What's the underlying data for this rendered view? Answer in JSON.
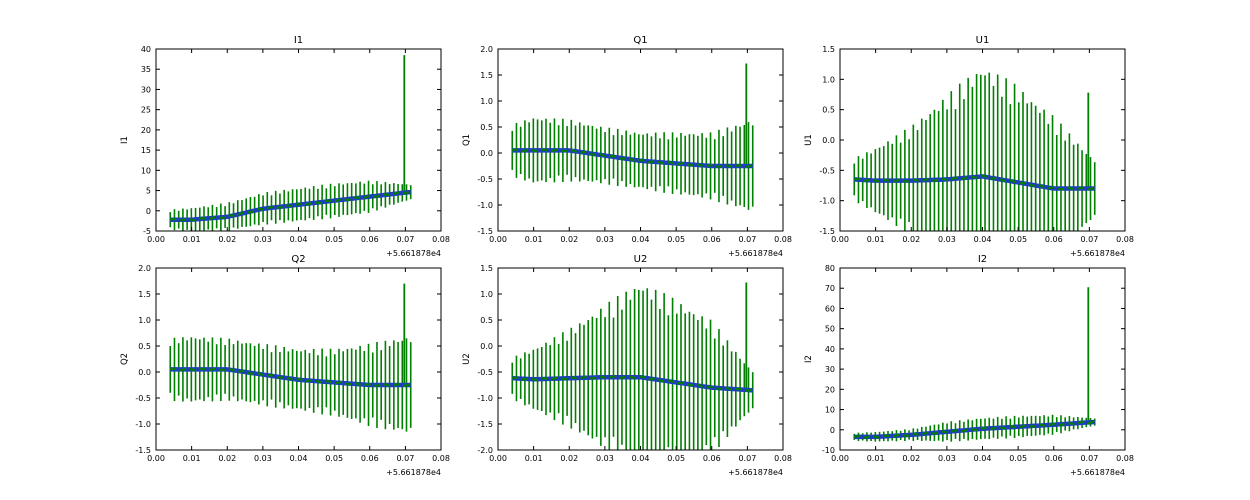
{
  "colors": {
    "blue": "#1f3fbf",
    "green": "#007f00",
    "axes": "#000000"
  },
  "chart_data": [
    {
      "type": "line",
      "title": "I1",
      "ylabel": "I1",
      "xlabel": "",
      "offset_label": "+5.661878e4",
      "xlim": [
        0.0,
        0.08
      ],
      "ylim": [
        -5,
        40
      ],
      "xticks": [
        "0.00",
        "0.01",
        "0.02",
        "0.03",
        "0.04",
        "0.05",
        "0.06",
        "0.07",
        "0.08"
      ],
      "yticks": [
        "-5",
        "0",
        "5",
        "10",
        "15",
        "20",
        "25",
        "30",
        "35",
        "40"
      ],
      "series": [
        {
          "name": "data",
          "color": "blue",
          "x": [
            0.004,
            0.01,
            0.02,
            0.03,
            0.04,
            0.05,
            0.06,
            0.071
          ],
          "y": [
            -2.2,
            -2.2,
            -1.5,
            0.5,
            1.5,
            2.5,
            3.5,
            4.6
          ]
        },
        {
          "name": "errorbars",
          "color": "green",
          "x": [
            0.004,
            0.01,
            0.02,
            0.03,
            0.04,
            0.05,
            0.06,
            0.071
          ],
          "y": [
            -2.2,
            -2.2,
            -1.5,
            0.5,
            1.5,
            2.5,
            3.5,
            4.6
          ],
          "err": [
            2.5,
            3.0,
            3.5,
            4.0,
            4.2,
            4.3,
            4.0,
            2.0
          ],
          "spike": {
            "x": 0.0697,
            "y": 38.5
          }
        }
      ]
    },
    {
      "type": "line",
      "title": "Q1",
      "ylabel": "Q1",
      "xlabel": "",
      "offset_label": "+5.661878e4",
      "xlim": [
        0.0,
        0.08
      ],
      "ylim": [
        -1.5,
        2.0
      ],
      "xticks": [
        "0.00",
        "0.01",
        "0.02",
        "0.03",
        "0.04",
        "0.05",
        "0.06",
        "0.07",
        "0.08"
      ],
      "yticks": [
        "-1.5",
        "-1.0",
        "-0.5",
        "0.0",
        "0.5",
        "1.0",
        "1.5",
        "2.0"
      ],
      "series": [
        {
          "name": "data",
          "color": "blue",
          "x": [
            0.004,
            0.01,
            0.02,
            0.03,
            0.04,
            0.05,
            0.06,
            0.071
          ],
          "y": [
            0.05,
            0.05,
            0.05,
            -0.05,
            -0.15,
            -0.2,
            -0.25,
            -0.25
          ]
        },
        {
          "name": "errorbars",
          "color": "green",
          "x": [
            0.004,
            0.01,
            0.02,
            0.03,
            0.04,
            0.05,
            0.06,
            0.071
          ],
          "y": [
            0.05,
            0.05,
            0.05,
            -0.05,
            -0.15,
            -0.2,
            -0.25,
            -0.25
          ],
          "err": [
            0.5,
            0.65,
            0.6,
            0.55,
            0.55,
            0.6,
            0.65,
            0.9
          ],
          "spike": {
            "x": 0.0697,
            "y": 1.72
          }
        }
      ]
    },
    {
      "type": "line",
      "title": "U1",
      "ylabel": "U1",
      "xlabel": "",
      "offset_label": "+5.661878e4",
      "xlim": [
        0.0,
        0.08
      ],
      "ylim": [
        -1.5,
        1.5
      ],
      "xticks": [
        "0.00",
        "0.01",
        "0.02",
        "0.03",
        "0.04",
        "0.05",
        "0.06",
        "0.07",
        "0.08"
      ],
      "yticks": [
        "-1.5",
        "-1.0",
        "-0.5",
        "0.0",
        "0.5",
        "1.0",
        "1.5"
      ],
      "series": [
        {
          "name": "data",
          "color": "blue",
          "x": [
            0.004,
            0.01,
            0.02,
            0.03,
            0.04,
            0.05,
            0.06,
            0.071
          ],
          "y": [
            -0.65,
            -0.67,
            -0.67,
            -0.65,
            -0.6,
            -0.7,
            -0.8,
            -0.8
          ]
        },
        {
          "name": "errorbars",
          "color": "green",
          "x": [
            0.004,
            0.01,
            0.02,
            0.03,
            0.04,
            0.05,
            0.06,
            0.071
          ],
          "y": [
            -0.65,
            -0.67,
            -0.67,
            -0.65,
            -0.6,
            -0.7,
            -0.8,
            -0.8
          ],
          "err": [
            0.35,
            0.55,
            0.9,
            1.4,
            1.85,
            1.6,
            1.2,
            0.5
          ],
          "spike": {
            "x": 0.0697,
            "y": 0.78
          }
        }
      ]
    },
    {
      "type": "line",
      "title": "Q2",
      "ylabel": "Q2",
      "xlabel": "",
      "offset_label": "+5.661878e4",
      "xlim": [
        0.0,
        0.08
      ],
      "ylim": [
        -1.5,
        2.0
      ],
      "xticks": [
        "0.00",
        "0.01",
        "0.02",
        "0.03",
        "0.04",
        "0.05",
        "0.06",
        "0.07",
        "0.08"
      ],
      "yticks": [
        "-1.5",
        "-1.0",
        "-0.5",
        "0.0",
        "0.5",
        "1.0",
        "1.5",
        "2.0"
      ],
      "series": [
        {
          "name": "data",
          "color": "blue",
          "x": [
            0.004,
            0.01,
            0.02,
            0.03,
            0.04,
            0.05,
            0.06,
            0.071
          ],
          "y": [
            0.05,
            0.05,
            0.05,
            -0.05,
            -0.15,
            -0.2,
            -0.25,
            -0.25
          ]
        },
        {
          "name": "errorbars",
          "color": "green",
          "x": [
            0.004,
            0.01,
            0.02,
            0.03,
            0.04,
            0.05,
            0.06,
            0.071
          ],
          "y": [
            0.05,
            0.05,
            0.05,
            -0.05,
            -0.15,
            -0.2,
            -0.25,
            -0.25
          ],
          "err": [
            0.6,
            0.65,
            0.6,
            0.6,
            0.6,
            0.65,
            0.8,
            0.95
          ],
          "spike": {
            "x": 0.0697,
            "y": 1.7
          }
        }
      ]
    },
    {
      "type": "line",
      "title": "U2",
      "ylabel": "U2",
      "xlabel": "",
      "offset_label": "+5.661878e4",
      "xlim": [
        0.0,
        0.08
      ],
      "ylim": [
        -2.0,
        1.5
      ],
      "xticks": [
        "0.00",
        "0.01",
        "0.02",
        "0.03",
        "0.04",
        "0.05",
        "0.06",
        "0.07",
        "0.08"
      ],
      "yticks": [
        "-2.0",
        "-1.5",
        "-1.0",
        "-0.5",
        "0.0",
        "0.5",
        "1.0",
        "1.5"
      ],
      "series": [
        {
          "name": "data",
          "color": "blue",
          "x": [
            0.004,
            0.01,
            0.02,
            0.03,
            0.04,
            0.05,
            0.06,
            0.071
          ],
          "y": [
            -0.62,
            -0.64,
            -0.62,
            -0.6,
            -0.6,
            -0.7,
            -0.8,
            -0.85
          ]
        },
        {
          "name": "errorbars",
          "color": "green",
          "x": [
            0.004,
            0.01,
            0.02,
            0.03,
            0.04,
            0.05,
            0.06,
            0.071
          ],
          "y": [
            -0.62,
            -0.64,
            -0.62,
            -0.6,
            -0.6,
            -0.7,
            -0.8,
            -0.85
          ],
          "err": [
            0.4,
            0.6,
            0.95,
            1.4,
            1.85,
            1.6,
            1.3,
            0.4
          ],
          "spike": {
            "x": 0.0697,
            "y": 1.22
          }
        }
      ]
    },
    {
      "type": "line",
      "title": "I2",
      "ylabel": "I2",
      "xlabel": "",
      "offset_label": "+5.661878e4",
      "xlim": [
        0.0,
        0.08
      ],
      "ylim": [
        -10,
        80
      ],
      "xticks": [
        "0.00",
        "0.01",
        "0.02",
        "0.03",
        "0.04",
        "0.05",
        "0.06",
        "0.07",
        "0.08"
      ],
      "yticks": [
        "-10",
        "0",
        "10",
        "20",
        "30",
        "40",
        "50",
        "60",
        "70",
        "80"
      ],
      "series": [
        {
          "name": "data",
          "color": "blue",
          "x": [
            0.004,
            0.01,
            0.02,
            0.03,
            0.04,
            0.05,
            0.06,
            0.071
          ],
          "y": [
            -3.5,
            -3.5,
            -2.5,
            -1.0,
            0.5,
            1.5,
            2.5,
            3.8
          ]
        },
        {
          "name": "errorbars",
          "color": "green",
          "x": [
            0.004,
            0.01,
            0.02,
            0.03,
            0.04,
            0.05,
            0.06,
            0.071
          ],
          "y": [
            -3.5,
            -3.5,
            -2.5,
            -1.0,
            0.5,
            1.5,
            2.5,
            3.8
          ],
          "err": [
            2.0,
            2.5,
            3.0,
            5.0,
            5.5,
            5.5,
            5.0,
            2.0
          ],
          "spike": {
            "x": 0.0697,
            "y": 70.5
          }
        }
      ]
    }
  ]
}
